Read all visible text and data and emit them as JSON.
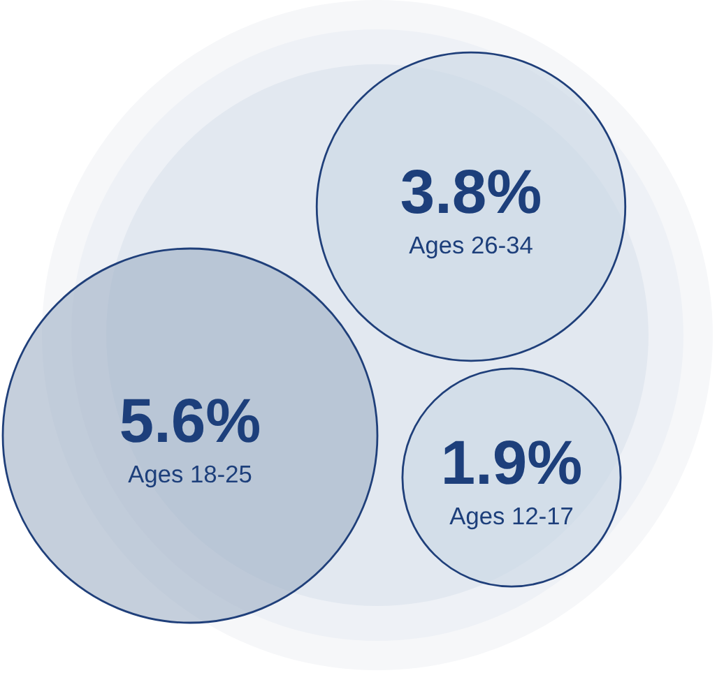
{
  "chart_data": {
    "type": "other",
    "categories": [
      "Ages 26-34",
      "Ages 18-25",
      "Ages 12-17"
    ],
    "values": [
      3.8,
      5.6,
      1.9
    ],
    "value_labels": [
      "3.8%",
      "5.6%",
      "1.9%"
    ],
    "colors": [
      "#c9d7e4",
      "#9eafc5",
      "#c9d7e4"
    ]
  }
}
